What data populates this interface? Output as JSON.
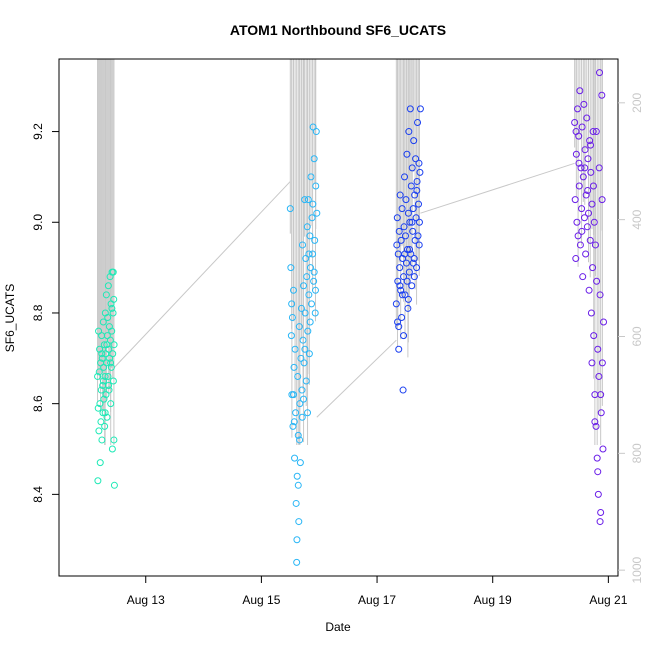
{
  "chart_data": {
    "type": "scatter",
    "title": "ATOM1 Northbound SF6_UCATS",
    "xlabel": "Date",
    "ylabel": "SF6_UCATS",
    "x_ticks": [
      "Aug 13",
      "Aug 15",
      "Aug 17",
      "Aug 19",
      "Aug 21"
    ],
    "y_ticks": [
      "8.4",
      "8.6",
      "8.8",
      "9.0",
      "9.2"
    ],
    "y2_ticks": [
      "200",
      "400",
      "600",
      "800",
      "1000"
    ],
    "xlim": [
      "2016-08-11T12:00",
      "2016-08-21T04:00"
    ],
    "ylim": [
      8.22,
      9.36
    ],
    "y2lim": [
      1010,
      125
    ],
    "y2_note": "secondary axis (pressure, reversed) shown in light grey",
    "colors": {
      "flight1": "#1de9b6",
      "flight2": "#29b6f6",
      "flight3": "#1a3ff0",
      "flight4": "#6a1ee8",
      "profile": "#c8c8c8"
    },
    "series": [
      {
        "start": "2016-08-12T04:00",
        "end": "2016-08-12T11:00",
        "points": [
          [
            0.0,
            8.66
          ],
          [
            0.02,
            8.43
          ],
          [
            0.04,
            8.59
          ],
          [
            0.06,
            8.76
          ],
          [
            0.08,
            8.54
          ],
          [
            0.1,
            8.67
          ],
          [
            0.12,
            8.72
          ],
          [
            0.14,
            8.6
          ],
          [
            0.16,
            8.47
          ],
          [
            0.18,
            8.69
          ],
          [
            0.2,
            8.56
          ],
          [
            0.22,
            8.63
          ],
          [
            0.24,
            8.75
          ],
          [
            0.26,
            8.52
          ],
          [
            0.28,
            8.7
          ],
          [
            0.3,
            8.64
          ],
          [
            0.32,
            8.58
          ],
          [
            0.34,
            8.78
          ],
          [
            0.36,
            8.68
          ],
          [
            0.38,
            8.61
          ],
          [
            0.4,
            8.73
          ],
          [
            0.42,
            8.55
          ],
          [
            0.44,
            8.66
          ],
          [
            0.46,
            8.8
          ],
          [
            0.48,
            8.71
          ],
          [
            0.5,
            8.62
          ],
          [
            0.52,
            8.84
          ],
          [
            0.54,
            8.69
          ],
          [
            0.56,
            8.57
          ],
          [
            0.58,
            8.75
          ],
          [
            0.6,
            8.79
          ],
          [
            0.62,
            8.66
          ],
          [
            0.64,
            8.86
          ],
          [
            0.66,
            8.72
          ],
          [
            0.68,
            8.63
          ],
          [
            0.7,
            8.77
          ],
          [
            0.72,
            8.7
          ],
          [
            0.74,
            8.88
          ],
          [
            0.76,
            8.74
          ],
          [
            0.78,
            8.6
          ],
          [
            0.8,
            8.82
          ],
          [
            0.82,
            8.68
          ],
          [
            0.84,
            8.76
          ],
          [
            0.86,
            8.89
          ],
          [
            0.88,
            8.5
          ],
          [
            0.9,
            8.71
          ],
          [
            0.92,
            8.8
          ],
          [
            0.94,
            8.65
          ],
          [
            0.96,
            8.83
          ],
          [
            0.98,
            8.73
          ],
          [
            1.0,
            8.42
          ],
          [
            0.97,
            8.52
          ],
          [
            0.93,
            8.89
          ],
          [
            0.85,
            8.81
          ],
          [
            0.77,
            8.69
          ],
          [
            0.65,
            8.64
          ],
          [
            0.55,
            8.73
          ],
          [
            0.45,
            8.58
          ],
          [
            0.35,
            8.65
          ],
          [
            0.25,
            8.71
          ]
        ]
      },
      {
        "start": "2016-08-15T12:00",
        "end": "2016-08-15T23:00",
        "points": [
          [
            0.0,
            9.03
          ],
          [
            0.02,
            8.9
          ],
          [
            0.04,
            8.75
          ],
          [
            0.06,
            8.62
          ],
          [
            0.08,
            8.79
          ],
          [
            0.1,
            8.55
          ],
          [
            0.12,
            8.85
          ],
          [
            0.14,
            8.68
          ],
          [
            0.16,
            8.48
          ],
          [
            0.18,
            8.72
          ],
          [
            0.2,
            8.58
          ],
          [
            0.22,
            8.38
          ],
          [
            0.24,
            8.25
          ],
          [
            0.26,
            8.44
          ],
          [
            0.28,
            8.66
          ],
          [
            0.3,
            8.53
          ],
          [
            0.32,
            8.34
          ],
          [
            0.34,
            8.77
          ],
          [
            0.36,
            8.6
          ],
          [
            0.38,
            8.47
          ],
          [
            0.4,
            8.7
          ],
          [
            0.42,
            8.81
          ],
          [
            0.44,
            8.63
          ],
          [
            0.46,
            8.95
          ],
          [
            0.48,
            8.74
          ],
          [
            0.5,
            8.86
          ],
          [
            0.52,
            8.69
          ],
          [
            0.54,
            9.05
          ],
          [
            0.56,
            8.8
          ],
          [
            0.58,
            8.92
          ],
          [
            0.6,
            8.65
          ],
          [
            0.62,
            8.88
          ],
          [
            0.64,
            8.99
          ],
          [
            0.66,
            8.76
          ],
          [
            0.68,
            9.05
          ],
          [
            0.7,
            8.84
          ],
          [
            0.72,
            8.71
          ],
          [
            0.74,
            8.97
          ],
          [
            0.76,
            8.9
          ],
          [
            0.78,
            9.1
          ],
          [
            0.8,
            8.82
          ],
          [
            0.82,
            9.01
          ],
          [
            0.84,
            8.93
          ],
          [
            0.86,
            9.21
          ],
          [
            0.88,
            8.87
          ],
          [
            0.9,
            9.14
          ],
          [
            0.92,
            8.96
          ],
          [
            0.94,
            8.8
          ],
          [
            0.96,
            9.08
          ],
          [
            0.98,
            9.2
          ],
          [
            1.0,
            9.02
          ],
          [
            0.95,
            8.85
          ],
          [
            0.85,
            9.04
          ],
          [
            0.75,
            8.78
          ],
          [
            0.65,
            8.58
          ],
          [
            0.55,
            8.72
          ],
          [
            0.45,
            8.57
          ],
          [
            0.35,
            8.52
          ],
          [
            0.25,
            8.3
          ],
          [
            0.15,
            8.56
          ],
          [
            0.05,
            8.82
          ],
          [
            0.12,
            8.62
          ],
          [
            0.3,
            8.42
          ],
          [
            0.5,
            8.61
          ],
          [
            0.7,
            8.93
          ],
          [
            0.9,
            8.89
          ]
        ]
      },
      {
        "start": "2016-08-17T08:00",
        "end": "2016-08-17T18:00",
        "points": [
          [
            0.0,
            8.82
          ],
          [
            0.02,
            8.95
          ],
          [
            0.04,
            9.01
          ],
          [
            0.06,
            8.87
          ],
          [
            0.08,
            8.93
          ],
          [
            0.1,
            8.77
          ],
          [
            0.12,
            8.98
          ],
          [
            0.14,
            8.9
          ],
          [
            0.16,
            9.06
          ],
          [
            0.18,
            8.85
          ],
          [
            0.2,
            8.96
          ],
          [
            0.22,
            8.79
          ],
          [
            0.24,
            9.03
          ],
          [
            0.26,
            8.92
          ],
          [
            0.28,
            8.63
          ],
          [
            0.3,
            8.88
          ],
          [
            0.32,
            8.99
          ],
          [
            0.34,
            9.1
          ],
          [
            0.36,
            8.84
          ],
          [
            0.38,
            8.97
          ],
          [
            0.4,
            9.05
          ],
          [
            0.42,
            8.91
          ],
          [
            0.44,
            9.15
          ],
          [
            0.46,
            8.94
          ],
          [
            0.48,
            8.81
          ],
          [
            0.5,
            9.02
          ],
          [
            0.52,
            9.2
          ],
          [
            0.54,
            8.89
          ],
          [
            0.56,
            9.0
          ],
          [
            0.58,
            9.25
          ],
          [
            0.6,
            8.93
          ],
          [
            0.62,
            9.08
          ],
          [
            0.64,
            8.86
          ],
          [
            0.66,
            9.12
          ],
          [
            0.68,
            8.98
          ],
          [
            0.7,
            9.03
          ],
          [
            0.72,
            9.18
          ],
          [
            0.74,
            8.92
          ],
          [
            0.76,
            9.06
          ],
          [
            0.78,
            8.96
          ],
          [
            0.8,
            9.14
          ],
          [
            0.82,
            9.01
          ],
          [
            0.84,
            8.9
          ],
          [
            0.86,
            9.09
          ],
          [
            0.88,
            9.22
          ],
          [
            0.9,
            8.97
          ],
          [
            0.92,
            9.04
          ],
          [
            0.94,
            9.13
          ],
          [
            0.96,
            9.0
          ],
          [
            0.98,
            9.11
          ],
          [
            1.0,
            9.25
          ],
          [
            0.95,
            8.95
          ],
          [
            0.85,
            9.07
          ],
          [
            0.75,
            8.88
          ],
          [
            0.65,
            9.0
          ],
          [
            0.55,
            8.94
          ],
          [
            0.45,
            8.87
          ],
          [
            0.35,
            8.93
          ],
          [
            0.25,
            8.84
          ],
          [
            0.15,
            8.86
          ],
          [
            0.05,
            8.78
          ],
          [
            0.1,
            8.72
          ],
          [
            0.3,
            8.75
          ],
          [
            0.5,
            8.83
          ],
          [
            0.7,
            8.91
          ]
        ]
      },
      {
        "start": "2016-08-20T10:00",
        "end": "2016-08-20T22:00",
        "points": [
          [
            0.0,
            9.22
          ],
          [
            0.02,
            9.05
          ],
          [
            0.04,
            8.92
          ],
          [
            0.06,
            9.15
          ],
          [
            0.08,
            9.0
          ],
          [
            0.1,
            9.25
          ],
          [
            0.12,
            8.97
          ],
          [
            0.14,
            9.19
          ],
          [
            0.16,
            9.08
          ],
          [
            0.18,
            9.29
          ],
          [
            0.2,
            8.95
          ],
          [
            0.22,
            9.12
          ],
          [
            0.24,
            9.03
          ],
          [
            0.26,
            9.21
          ],
          [
            0.28,
            8.88
          ],
          [
            0.3,
            9.1
          ],
          [
            0.32,
            9.26
          ],
          [
            0.34,
            9.01
          ],
          [
            0.36,
            9.16
          ],
          [
            0.38,
            8.93
          ],
          [
            0.4,
            9.06
          ],
          [
            0.42,
            9.23
          ],
          [
            0.44,
            8.99
          ],
          [
            0.46,
            9.14
          ],
          [
            0.48,
            9.02
          ],
          [
            0.5,
            8.85
          ],
          [
            0.52,
            9.18
          ],
          [
            0.54,
            8.96
          ],
          [
            0.56,
            9.11
          ],
          [
            0.58,
            8.8
          ],
          [
            0.6,
            9.04
          ],
          [
            0.62,
            8.9
          ],
          [
            0.64,
            9.2
          ],
          [
            0.66,
            8.75
          ],
          [
            0.68,
            9.0
          ],
          [
            0.7,
            8.62
          ],
          [
            0.72,
            8.95
          ],
          [
            0.74,
            8.55
          ],
          [
            0.76,
            8.87
          ],
          [
            0.78,
            8.48
          ],
          [
            0.8,
            8.72
          ],
          [
            0.82,
            8.4
          ],
          [
            0.84,
            8.66
          ],
          [
            0.86,
            9.33
          ],
          [
            0.88,
            8.84
          ],
          [
            0.9,
            8.36
          ],
          [
            0.92,
            8.58
          ],
          [
            0.94,
            9.28
          ],
          [
            0.96,
            8.69
          ],
          [
            0.98,
            8.5
          ],
          [
            1.0,
            8.78
          ],
          [
            0.95,
            9.05
          ],
          [
            0.85,
            9.12
          ],
          [
            0.75,
            9.2
          ],
          [
            0.65,
            9.08
          ],
          [
            0.55,
            9.17
          ],
          [
            0.45,
            9.07
          ],
          [
            0.35,
            9.12
          ],
          [
            0.25,
            8.98
          ],
          [
            0.15,
            9.13
          ],
          [
            0.05,
            9.2
          ],
          [
            0.88,
            8.34
          ],
          [
            0.8,
            8.45
          ],
          [
            0.7,
            8.56
          ],
          [
            0.6,
            8.69
          ],
          [
            0.9,
            8.62
          ]
        ]
      }
    ],
    "profile_lines": [
      {
        "from": [
          "2016-08-12T11:00",
          8.68
        ],
        "to": [
          "2016-08-15T12:00",
          9.09
        ]
      },
      {
        "from": [
          "2016-08-15T23:00",
          8.57
        ],
        "to": [
          "2016-08-17T08:00",
          8.74
        ]
      },
      {
        "from": [
          "2016-08-17T18:00",
          9.02
        ],
        "to": [
          "2016-08-20T10:00",
          9.13
        ]
      }
    ]
  }
}
